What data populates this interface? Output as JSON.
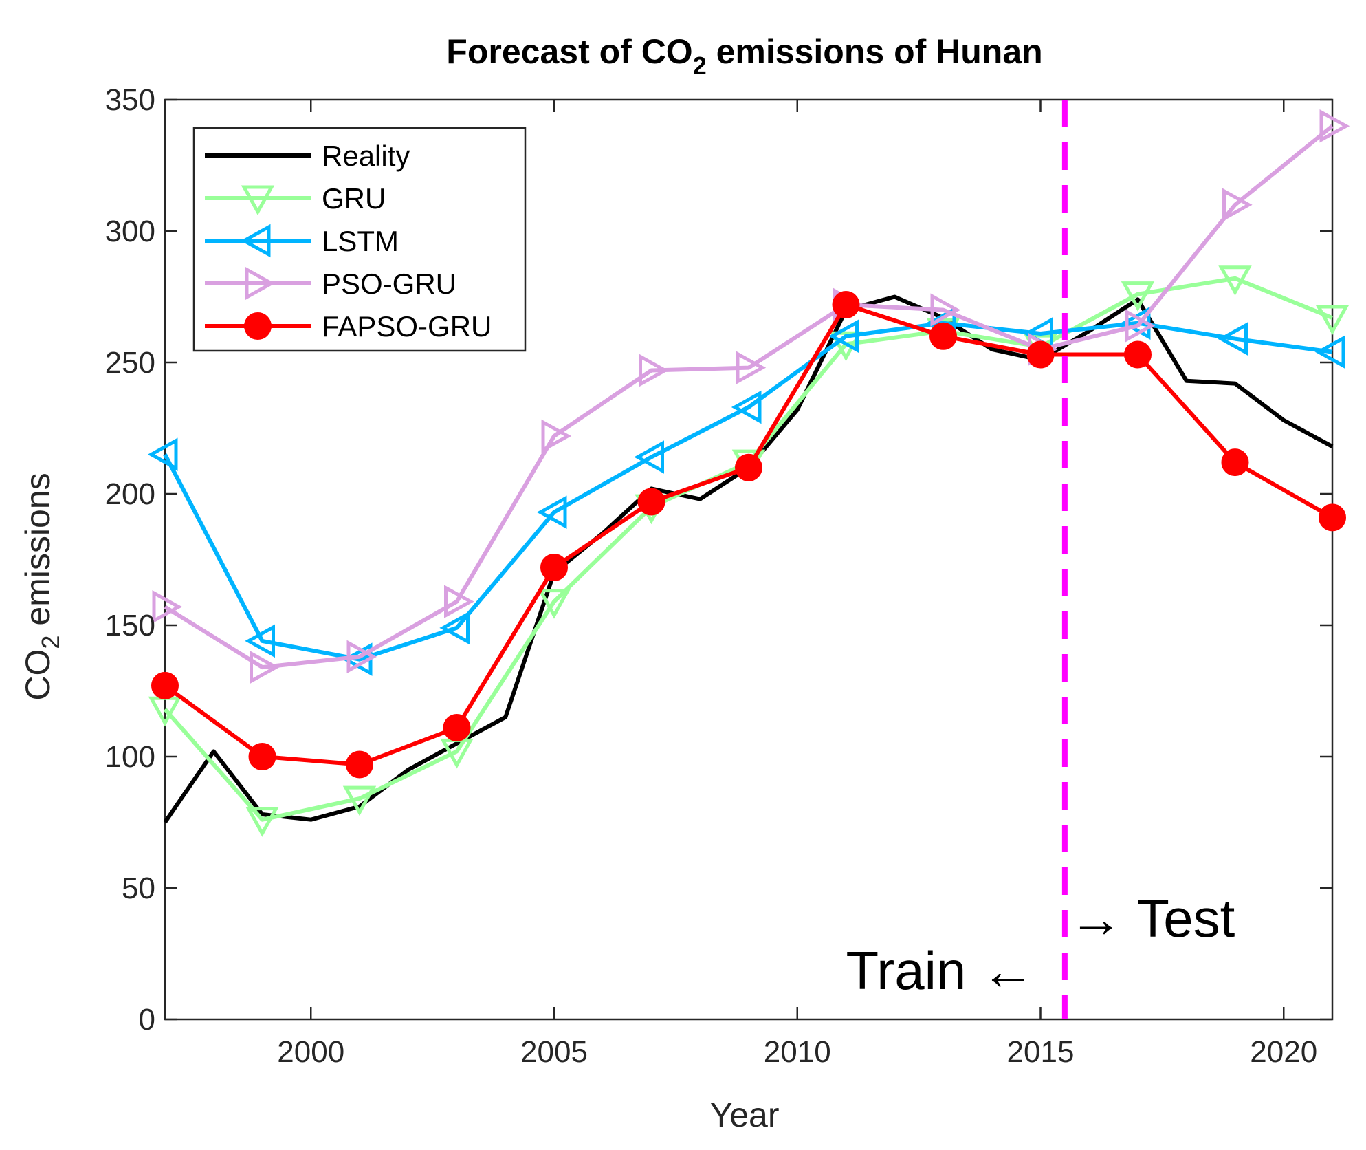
{
  "chart_data": {
    "type": "line",
    "title_main": "Forecast of CO",
    "title_sub": "2",
    "title_rest": " emissions of Hunan",
    "xlabel": "Year",
    "ylabel_main": "CO",
    "ylabel_sub": "2",
    "ylabel_rest": " emissions",
    "xlim": [
      1997,
      2021
    ],
    "ylim": [
      0,
      350
    ],
    "xticks": [
      2000,
      2005,
      2010,
      2015,
      2020
    ],
    "yticks": [
      0,
      50,
      100,
      150,
      200,
      250,
      300,
      350
    ],
    "grid": false,
    "legend_position": "top-left",
    "split_year": 2015.5,
    "split_color": "#ff00ff",
    "annotations": {
      "train": "Train ←",
      "test": "→ Test"
    },
    "series": [
      {
        "name": "Reality",
        "color": "#000000",
        "marker": "none",
        "x": [
          1997,
          1998,
          1999,
          2000,
          2001,
          2002,
          2003,
          2004,
          2005,
          2006,
          2007,
          2008,
          2009,
          2010,
          2011,
          2012,
          2013,
          2014,
          2015,
          2016,
          2017,
          2018,
          2019,
          2020,
          2021
        ],
        "y": [
          75,
          102,
          78,
          76,
          81,
          95,
          105,
          115,
          170,
          185,
          202,
          198,
          210,
          232,
          270,
          275,
          267,
          255,
          251,
          262,
          274,
          243,
          242,
          228,
          218
        ]
      },
      {
        "name": "GRU",
        "color": "#99ff99",
        "marker": "triangle-down",
        "x": [
          1997,
          1999,
          2001,
          2003,
          2005,
          2007,
          2009,
          2011,
          2013,
          2015,
          2017,
          2019,
          2021
        ],
        "y": [
          118,
          76,
          84,
          102,
          159,
          195,
          212,
          257,
          262,
          256,
          276,
          282,
          267
        ]
      },
      {
        "name": "LSTM",
        "color": "#00b4ff",
        "marker": "triangle-left",
        "x": [
          1997,
          1999,
          2001,
          2003,
          2005,
          2007,
          2009,
          2011,
          2013,
          2015,
          2017,
          2019,
          2021
        ],
        "y": [
          215,
          144,
          137,
          149,
          193,
          214,
          233,
          260,
          265,
          261,
          265,
          259,
          254
        ]
      },
      {
        "name": "PSO-GRU",
        "color": "#d9a0e0",
        "marker": "triangle-right",
        "x": [
          1997,
          1999,
          2001,
          2003,
          2005,
          2007,
          2009,
          2011,
          2013,
          2015,
          2017,
          2019,
          2021
        ],
        "y": [
          157,
          134,
          138,
          159,
          222,
          247,
          248,
          272,
          270,
          255,
          264,
          310,
          340
        ]
      },
      {
        "name": "FAPSO-GRU",
        "color": "#ff0000",
        "marker": "circle",
        "x": [
          1997,
          1999,
          2001,
          2003,
          2005,
          2007,
          2009,
          2011,
          2013,
          2015,
          2017,
          2019,
          2021
        ],
        "y": [
          127,
          100,
          97,
          111,
          172,
          197,
          210,
          272,
          260,
          253,
          253,
          212,
          191
        ]
      }
    ]
  }
}
